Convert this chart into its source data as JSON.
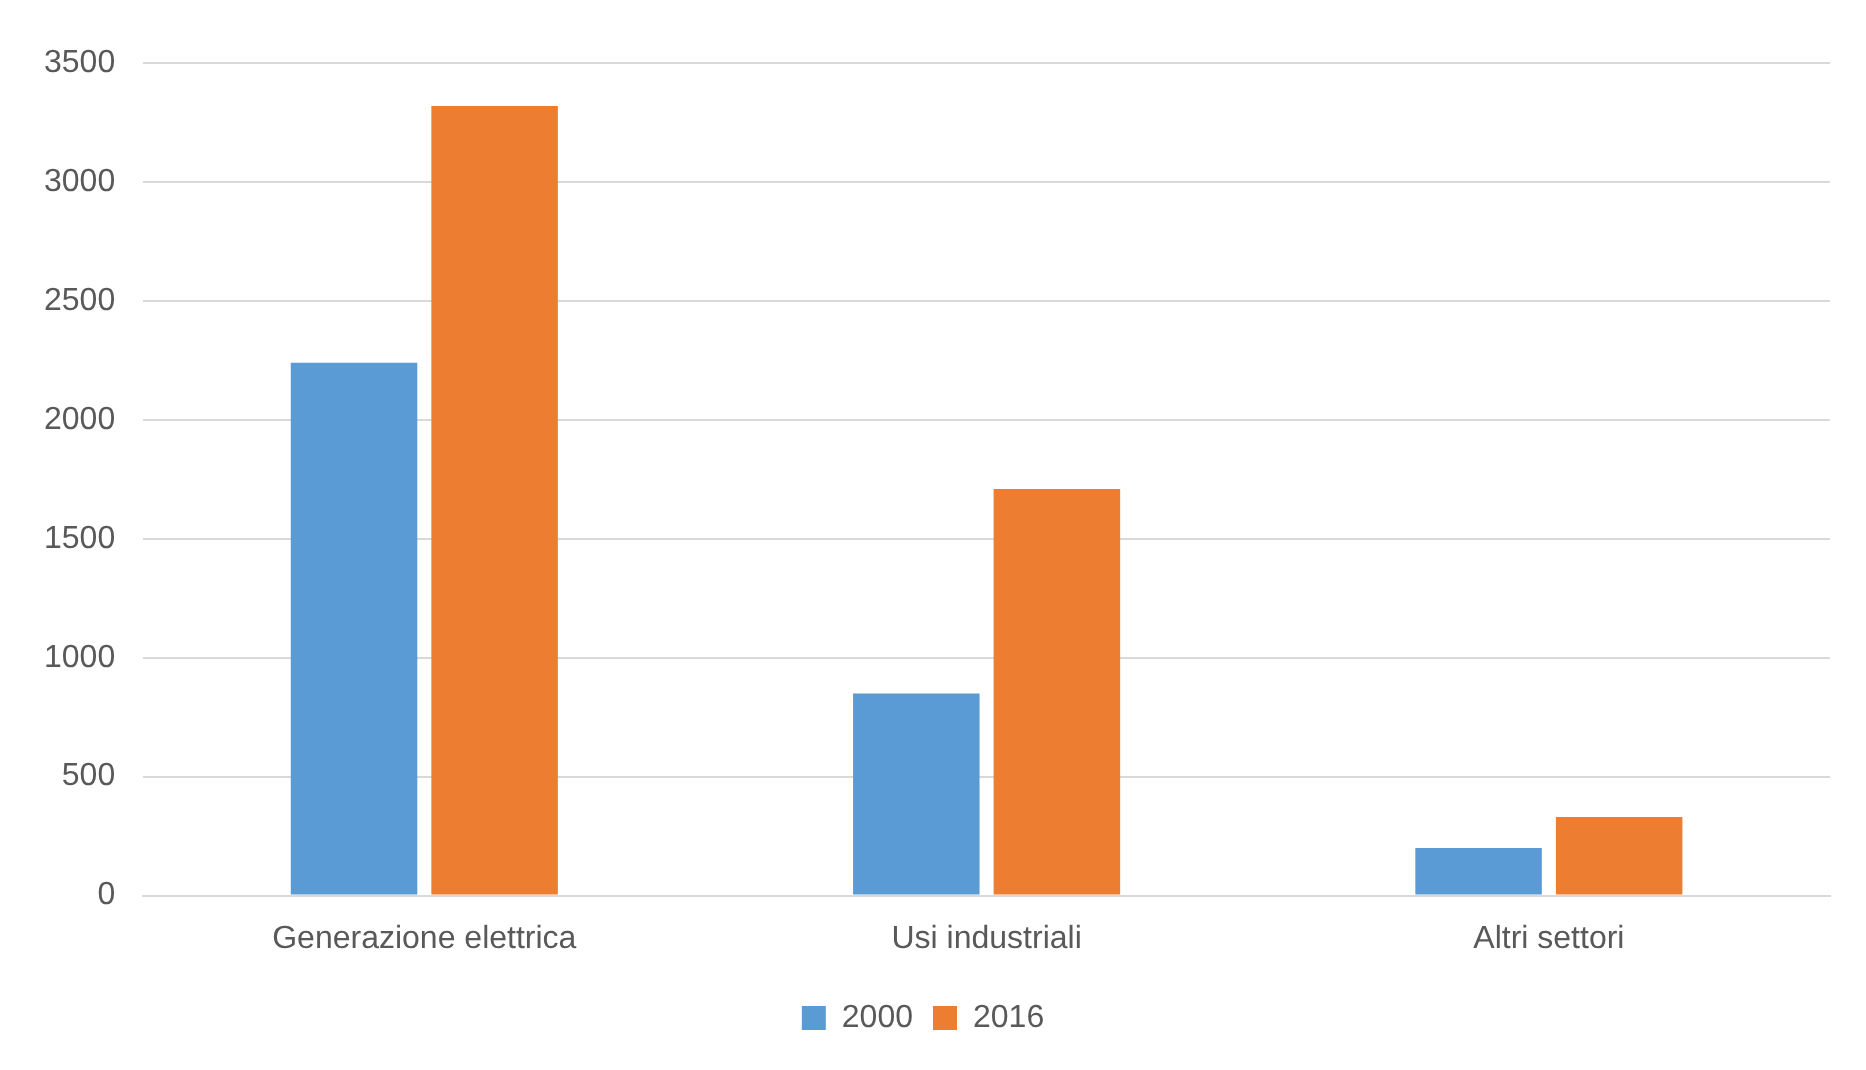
{
  "chart_data": {
    "type": "bar",
    "categories": [
      "Generazione elettrica",
      "Usi industriali",
      "Altri settori"
    ],
    "series": [
      {
        "name": "2000",
        "color": "#5b9bd5",
        "values": [
          2240,
          850,
          200
        ]
      },
      {
        "name": "2016",
        "color": "#ed7d31",
        "values": [
          3320,
          1710,
          330
        ]
      }
    ],
    "ylim": [
      0,
      3500
    ],
    "yticks": [
      0,
      500,
      1000,
      1500,
      2000,
      2500,
      3000,
      3500
    ],
    "grid": "y",
    "legend": "bottom"
  }
}
